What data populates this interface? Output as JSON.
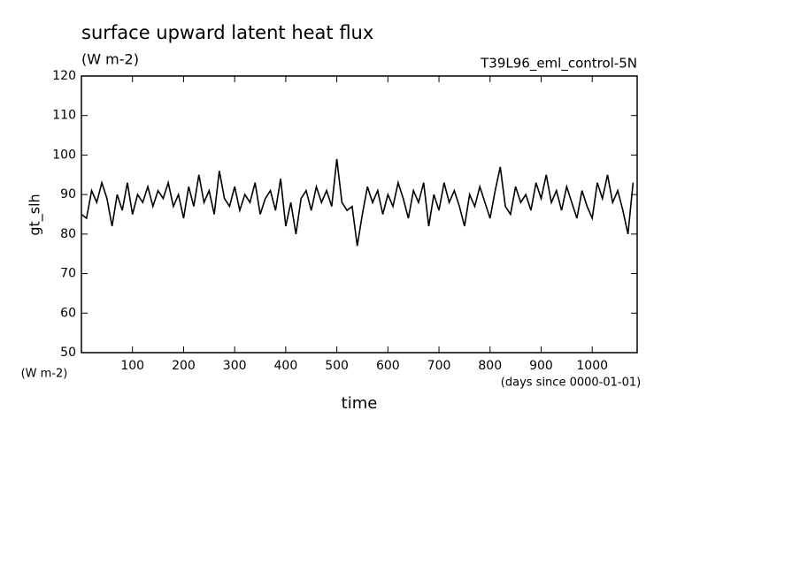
{
  "chart_data": {
    "type": "line",
    "title": "surface upward latent heat flux",
    "subtitle": "(W m-2)",
    "annotation": "T39L96_eml_control-5N",
    "y_label": "gt_slh",
    "y_units": "(W m-2)",
    "x_label": "time",
    "x_units": "(days since 0000-01-01)",
    "xlim": [
      0,
      1088
    ],
    "ylim": [
      50,
      120
    ],
    "xticks": [
      100,
      200,
      300,
      400,
      500,
      600,
      700,
      800,
      900,
      1000
    ],
    "yticks": [
      50,
      60,
      70,
      80,
      90,
      100,
      110,
      120
    ],
    "x": [
      0,
      10,
      20,
      30,
      40,
      50,
      60,
      70,
      80,
      90,
      100,
      110,
      120,
      130,
      140,
      150,
      160,
      170,
      180,
      190,
      200,
      210,
      220,
      230,
      240,
      250,
      260,
      270,
      280,
      290,
      300,
      310,
      320,
      330,
      340,
      350,
      360,
      370,
      380,
      390,
      400,
      410,
      420,
      430,
      440,
      450,
      460,
      470,
      480,
      490,
      500,
      510,
      520,
      530,
      540,
      550,
      560,
      570,
      580,
      590,
      600,
      610,
      620,
      630,
      640,
      650,
      660,
      670,
      680,
      690,
      700,
      710,
      720,
      730,
      740,
      750,
      760,
      770,
      780,
      790,
      800,
      810,
      820,
      830,
      840,
      850,
      860,
      870,
      880,
      890,
      900,
      910,
      920,
      930,
      940,
      950,
      960,
      970,
      980,
      990,
      1000,
      1010,
      1020,
      1030,
      1040,
      1050,
      1060,
      1070,
      1080
    ],
    "series": [
      {
        "color": "#000000",
        "values": [
          85,
          84,
          91,
          88,
          93,
          89,
          82,
          90,
          86,
          93,
          85,
          90,
          88,
          92,
          87,
          91,
          89,
          93,
          87,
          90,
          84,
          92,
          87,
          95,
          88,
          91,
          85,
          96,
          89,
          87,
          92,
          86,
          90,
          88,
          93,
          85,
          89,
          91,
          86,
          94,
          82,
          88,
          80,
          89,
          91,
          86,
          92,
          88,
          91,
          87,
          99,
          88,
          86,
          87,
          77,
          85,
          92,
          88,
          91,
          85,
          90,
          87,
          93,
          89,
          84,
          91,
          88,
          93,
          82,
          90,
          86,
          93,
          88,
          91,
          87,
          82,
          90,
          87,
          92,
          88,
          84,
          91,
          97,
          87,
          85,
          92,
          88,
          90,
          86,
          93,
          89,
          95,
          88,
          91,
          86,
          92,
          88,
          84,
          91,
          87,
          84,
          93,
          89,
          95,
          88,
          91,
          86,
          80,
          93
        ]
      }
    ]
  }
}
